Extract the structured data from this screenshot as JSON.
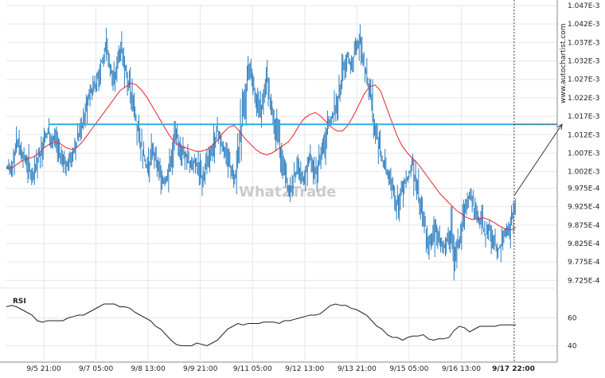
{
  "watermark": "What2Trade",
  "side_text": "www.autochartist.com",
  "colors": {
    "candles": "#2f7fc0",
    "moving_average": "#e8232a",
    "level": "#35a8e0",
    "rsi": "#222222",
    "grid": "#e6e6e6",
    "axis": "#888888"
  },
  "chart_data": [
    {
      "type": "candlestick",
      "title": "",
      "y_ticks": [
        "1.047E-3",
        "1.042E-3",
        "1.037E-3",
        "1.032E-3",
        "1.027E-3",
        "1.022E-3",
        "1.017E-3",
        "1.012E-3",
        "1.007E-3",
        "1.002E-3",
        "9.975E-4",
        "9.925E-4",
        "9.875E-4",
        "9.825E-4",
        "9.775E-4",
        "9.725E-4"
      ],
      "ylim": [
        0.0009715,
        0.001047
      ],
      "x_ticks": [
        "9/5 21:00",
        "9/7 05:00",
        "9/8 13:00",
        "9/9 21:00",
        "9/11 05:00",
        "9/12 13:00",
        "9/13 21:00",
        "9/15 05:00",
        "9/16 13:00",
        "9/17 22:00"
      ],
      "x_highlight": "9/17 22:00",
      "level": 0.0010148,
      "projection": {
        "from": 0.0009955,
        "to": 0.0010148
      },
      "close_series": [
        0.001003,
        0.001006,
        0.00101,
        0.001007,
        0.001005,
        0.001002,
        0.001,
        0.001004,
        0.001008,
        0.001012,
        0.001013,
        0.001011,
        0.001009,
        0.001005,
        0.001006,
        0.001004,
        0.001007,
        0.001009,
        0.001012,
        0.001016,
        0.00102,
        0.001024,
        0.001025,
        0.001028,
        0.001033,
        0.001035,
        0.00103,
        0.001027,
        0.001033,
        0.001036,
        0.00103,
        0.001025,
        0.00102,
        0.001015,
        0.00101,
        0.001005,
        0.001003,
        0.001008,
        0.001005,
        0.001002,
        0.001,
        0.001001,
        0.001006,
        0.001012,
        0.00101,
        0.001008,
        0.001006,
        0.001004,
        0.001005,
        0.001003,
        0.001,
        0.001003,
        0.001006,
        0.001009,
        0.001013,
        0.00101,
        0.001008,
        0.001005,
        0.001002,
        0.001,
        0.001012,
        0.00102,
        0.001029,
        0.001027,
        0.001022,
        0.001018,
        0.001022,
        0.001027,
        0.00102,
        0.001015,
        0.00101,
        0.001005,
        0.001,
        0.000996,
        0.001001,
        0.001003,
        0.001,
        0.001001,
        0.001006,
        0.001003,
        0.001001,
        0.001006,
        0.00101,
        0.001015,
        0.001017,
        0.00102,
        0.001025,
        0.00103,
        0.001033,
        0.001031,
        0.001035,
        0.001038,
        0.001033,
        0.001028,
        0.001023,
        0.001015,
        0.00101,
        0.001005,
        0.001003,
        0.001,
        0.000997,
        0.000993,
        0.000996,
        0.000999,
        0.001001,
        0.001004,
        0.000998,
        0.000992,
        0.000988,
        0.000984,
        0.000982,
        0.000987,
        0.000984,
        0.000981,
        0.000983,
        0.000986,
        0.000979,
        0.000983,
        0.000988,
        0.000993,
        0.000995,
        0.000992,
        0.000989,
        0.000988,
        0.000985,
        0.000987,
        0.000984,
        0.000981,
        0.000982,
        0.000985,
        0.000986,
        0.00099,
        0.0009955
      ],
      "moving_average": [
        0.001003,
        0.001003,
        0.001004,
        0.001005,
        0.0010055,
        0.001006,
        0.001007,
        0.0010085,
        0.0010095,
        0.00101,
        0.0010095,
        0.0010085,
        0.001008,
        0.0010085,
        0.00101,
        0.001012,
        0.001014,
        0.001016,
        0.001018,
        0.00102,
        0.001022,
        0.001024,
        0.001025,
        0.001026,
        0.0010255,
        0.001024,
        0.001022,
        0.0010195,
        0.001017,
        0.0010145,
        0.001012,
        0.00101,
        0.001009,
        0.0010085,
        0.001008,
        0.0010075,
        0.0010075,
        0.001008,
        0.001009,
        0.0010105,
        0.0010125,
        0.001014,
        0.0010145,
        0.001013,
        0.001011,
        0.0010095,
        0.001008,
        0.001007,
        0.0010065,
        0.001007,
        0.001008,
        0.001009,
        0.00101,
        0.001012,
        0.0010145,
        0.0010165,
        0.0010175,
        0.001018,
        0.001017,
        0.0010155,
        0.001014,
        0.001013,
        0.001013,
        0.0010145,
        0.001017,
        0.00102,
        0.001023,
        0.001025,
        0.0010255,
        0.001024,
        0.00102,
        0.001016,
        0.001012,
        0.001009,
        0.001007,
        0.0010055,
        0.001004,
        0.001002,
        0.001,
        0.000998,
        0.000996,
        0.0009945,
        0.000993,
        0.0009915,
        0.0009905,
        0.0009895,
        0.000989,
        0.0009892,
        0.0009895,
        0.000989,
        0.0009882,
        0.0009872,
        0.0009865,
        0.0009862,
        0.0009868
      ],
      "ma_start_ratio": 0.0
    },
    {
      "type": "line",
      "title": "RSI",
      "y_ticks": [
        60,
        40
      ],
      "ylim": [
        30,
        78
      ],
      "values": [
        68,
        69,
        68,
        66,
        64,
        62,
        58,
        57,
        58,
        58,
        58,
        58,
        60,
        61,
        62,
        62,
        64,
        66,
        68,
        70,
        70,
        70,
        68,
        68,
        67,
        64,
        62,
        60,
        58,
        54,
        52,
        48,
        44,
        41,
        40,
        40,
        40,
        42,
        41,
        40,
        42,
        44,
        48,
        52,
        54,
        56,
        55,
        56,
        56,
        56,
        57,
        57,
        57,
        56,
        58,
        58,
        59,
        60,
        61,
        62,
        62,
        63,
        66,
        69,
        70,
        69,
        69,
        67,
        66,
        64,
        62,
        58,
        54,
        52,
        48,
        46,
        46,
        44,
        46,
        47,
        47,
        48,
        45,
        44,
        45,
        45,
        46,
        51,
        54,
        53,
        50,
        52,
        54,
        54,
        54,
        54,
        55,
        55,
        55,
        55
      ]
    }
  ]
}
